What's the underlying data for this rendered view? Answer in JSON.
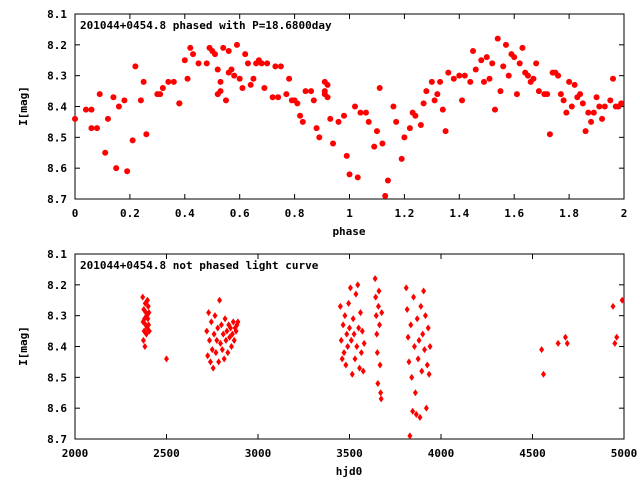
{
  "chart_data": [
    {
      "type": "scatter",
      "title": "201044+0454.8 phased with P=18.6800day",
      "xlabel": "phase",
      "ylabel": "I[mag]",
      "xlim": [
        0,
        2
      ],
      "ylim": [
        8.7,
        8.1
      ],
      "y_inverted": true,
      "grid": false,
      "marker": "filled-circle",
      "color": "#ff0000",
      "xticks": [
        "0",
        "0.2",
        "0.4",
        "0.6",
        "0.8",
        "1",
        "1.2",
        "1.4",
        "1.6",
        "1.8",
        "2"
      ],
      "yticks": [
        "8.1",
        "8.2",
        "8.3",
        "8.4",
        "8.5",
        "8.6",
        "8.7"
      ],
      "points": [
        [
          0.0,
          8.44
        ],
        [
          0.04,
          8.41
        ],
        [
          0.06,
          8.41
        ],
        [
          0.06,
          8.47
        ],
        [
          0.08,
          8.47
        ],
        [
          0.09,
          8.36
        ],
        [
          0.11,
          8.55
        ],
        [
          0.12,
          8.44
        ],
        [
          0.14,
          8.37
        ],
        [
          0.15,
          8.6
        ],
        [
          0.16,
          8.4
        ],
        [
          0.18,
          8.38
        ],
        [
          0.19,
          8.61
        ],
        [
          0.21,
          8.51
        ],
        [
          0.22,
          8.27
        ],
        [
          0.24,
          8.38
        ],
        [
          0.25,
          8.32
        ],
        [
          0.26,
          8.49
        ],
        [
          0.3,
          8.36
        ],
        [
          0.31,
          8.36
        ],
        [
          0.32,
          8.34
        ],
        [
          0.34,
          8.32
        ],
        [
          0.36,
          8.32
        ],
        [
          0.38,
          8.39
        ],
        [
          0.38,
          8.39
        ],
        [
          0.4,
          8.25
        ],
        [
          0.41,
          8.31
        ],
        [
          0.42,
          8.21
        ],
        [
          0.43,
          8.23
        ],
        [
          0.45,
          8.26
        ],
        [
          0.48,
          8.26
        ],
        [
          0.49,
          8.21
        ],
        [
          0.5,
          8.22
        ],
        [
          0.51,
          8.23
        ],
        [
          0.52,
          8.28
        ],
        [
          0.52,
          8.36
        ],
        [
          0.53,
          8.32
        ],
        [
          0.53,
          8.35
        ],
        [
          0.54,
          8.21
        ],
        [
          0.55,
          8.38
        ],
        [
          0.56,
          8.22
        ],
        [
          0.56,
          8.29
        ],
        [
          0.57,
          8.28
        ],
        [
          0.58,
          8.3
        ],
        [
          0.59,
          8.2
        ],
        [
          0.6,
          8.31
        ],
        [
          0.61,
          8.34
        ],
        [
          0.62,
          8.23
        ],
        [
          0.63,
          8.26
        ],
        [
          0.64,
          8.33
        ],
        [
          0.65,
          8.31
        ],
        [
          0.66,
          8.26
        ],
        [
          0.67,
          8.25
        ],
        [
          0.68,
          8.26
        ],
        [
          0.69,
          8.34
        ],
        [
          0.7,
          8.26
        ],
        [
          0.72,
          8.37
        ],
        [
          0.73,
          8.27
        ],
        [
          0.74,
          8.37
        ],
        [
          0.75,
          8.27
        ],
        [
          0.77,
          8.36
        ],
        [
          0.78,
          8.31
        ],
        [
          0.79,
          8.38
        ],
        [
          0.8,
          8.38
        ],
        [
          0.81,
          8.39
        ],
        [
          0.82,
          8.43
        ],
        [
          0.83,
          8.45
        ],
        [
          0.84,
          8.35
        ],
        [
          0.86,
          8.35
        ],
        [
          0.87,
          8.38
        ],
        [
          0.88,
          8.47
        ],
        [
          0.89,
          8.5
        ],
        [
          0.91,
          8.32
        ],
        [
          0.91,
          8.35
        ],
        [
          0.91,
          8.36
        ],
        [
          0.92,
          8.33
        ],
        [
          0.92,
          8.37
        ],
        [
          0.93,
          8.44
        ],
        [
          0.94,
          8.52
        ],
        [
          0.96,
          8.45
        ],
        [
          0.98,
          8.43
        ],
        [
          0.99,
          8.56
        ],
        [
          1.0,
          8.62
        ],
        [
          1.02,
          8.4
        ],
        [
          1.03,
          8.63
        ],
        [
          1.04,
          8.42
        ],
        [
          1.06,
          8.42
        ],
        [
          1.07,
          8.45
        ],
        [
          1.09,
          8.53
        ],
        [
          1.1,
          8.48
        ],
        [
          1.11,
          8.34
        ],
        [
          1.12,
          8.52
        ],
        [
          1.13,
          8.69
        ],
        [
          1.14,
          8.64
        ],
        [
          1.16,
          8.4
        ],
        [
          1.17,
          8.45
        ],
        [
          1.19,
          8.57
        ],
        [
          1.2,
          8.5
        ],
        [
          1.22,
          8.47
        ],
        [
          1.23,
          8.42
        ],
        [
          1.24,
          8.43
        ],
        [
          1.26,
          8.46
        ],
        [
          1.27,
          8.39
        ],
        [
          1.28,
          8.35
        ],
        [
          1.3,
          8.32
        ],
        [
          1.31,
          8.38
        ],
        [
          1.32,
          8.36
        ],
        [
          1.33,
          8.32
        ],
        [
          1.34,
          8.41
        ],
        [
          1.35,
          8.48
        ],
        [
          1.36,
          8.29
        ],
        [
          1.38,
          8.31
        ],
        [
          1.4,
          8.3
        ],
        [
          1.41,
          8.38
        ],
        [
          1.42,
          8.3
        ],
        [
          1.44,
          8.32
        ],
        [
          1.45,
          8.22
        ],
        [
          1.46,
          8.28
        ],
        [
          1.48,
          8.25
        ],
        [
          1.49,
          8.32
        ],
        [
          1.5,
          8.24
        ],
        [
          1.51,
          8.31
        ],
        [
          1.52,
          8.26
        ],
        [
          1.53,
          8.41
        ],
        [
          1.54,
          8.18
        ],
        [
          1.55,
          8.35
        ],
        [
          1.56,
          8.27
        ],
        [
          1.57,
          8.2
        ],
        [
          1.58,
          8.3
        ],
        [
          1.59,
          8.23
        ],
        [
          1.6,
          8.24
        ],
        [
          1.61,
          8.36
        ],
        [
          1.62,
          8.26
        ],
        [
          1.63,
          8.21
        ],
        [
          1.64,
          8.29
        ],
        [
          1.65,
          8.3
        ],
        [
          1.66,
          8.32
        ],
        [
          1.67,
          8.31
        ],
        [
          1.68,
          8.26
        ],
        [
          1.69,
          8.35
        ],
        [
          1.71,
          8.36
        ],
        [
          1.72,
          8.36
        ],
        [
          1.73,
          8.49
        ],
        [
          1.74,
          8.29
        ],
        [
          1.75,
          8.29
        ],
        [
          1.76,
          8.3
        ],
        [
          1.77,
          8.36
        ],
        [
          1.78,
          8.38
        ],
        [
          1.79,
          8.42
        ],
        [
          1.8,
          8.32
        ],
        [
          1.81,
          8.4
        ],
        [
          1.82,
          8.33
        ],
        [
          1.83,
          8.37
        ],
        [
          1.84,
          8.36
        ],
        [
          1.85,
          8.39
        ],
        [
          1.86,
          8.48
        ],
        [
          1.87,
          8.42
        ],
        [
          1.88,
          8.45
        ],
        [
          1.89,
          8.42
        ],
        [
          1.9,
          8.37
        ],
        [
          1.91,
          8.4
        ],
        [
          1.92,
          8.44
        ],
        [
          1.93,
          8.4
        ],
        [
          1.95,
          8.38
        ],
        [
          1.96,
          8.31
        ],
        [
          1.97,
          8.4
        ],
        [
          1.98,
          8.4
        ],
        [
          1.99,
          8.39
        ]
      ]
    },
    {
      "type": "scatter",
      "title": "201044+0454.8 not phased light curve",
      "xlabel": "hjd0",
      "ylabel": "I[mag]",
      "xlim": [
        2000,
        5000
      ],
      "ylim": [
        8.7,
        8.1
      ],
      "y_inverted": true,
      "grid": false,
      "marker": "filled-diamond",
      "color": "#ff0000",
      "xticks": [
        "2000",
        "2500",
        "3000",
        "3500",
        "4000",
        "4500",
        "5000"
      ],
      "yticks": [
        "8.1",
        "8.2",
        "8.3",
        "8.4",
        "8.5",
        "8.6",
        "8.7"
      ],
      "points": [
        [
          2370,
          8.24
        ],
        [
          2372,
          8.32
        ],
        [
          2374,
          8.38
        ],
        [
          2376,
          8.28
        ],
        [
          2378,
          8.35
        ],
        [
          2380,
          8.31
        ],
        [
          2382,
          8.4
        ],
        [
          2384,
          8.26
        ],
        [
          2386,
          8.33
        ],
        [
          2388,
          8.29
        ],
        [
          2390,
          8.36
        ],
        [
          2392,
          8.3
        ],
        [
          2394,
          8.34
        ],
        [
          2396,
          8.25
        ],
        [
          2398,
          8.31
        ],
        [
          2400,
          8.27
        ],
        [
          2402,
          8.33
        ],
        [
          2404,
          8.29
        ],
        [
          2406,
          8.35
        ],
        [
          2500,
          8.44
        ],
        [
          2720,
          8.35
        ],
        [
          2725,
          8.43
        ],
        [
          2730,
          8.29
        ],
        [
          2735,
          8.38
        ],
        [
          2740,
          8.45
        ],
        [
          2745,
          8.32
        ],
        [
          2750,
          8.41
        ],
        [
          2755,
          8.47
        ],
        [
          2760,
          8.36
        ],
        [
          2765,
          8.3
        ],
        [
          2770,
          8.42
        ],
        [
          2775,
          8.38
        ],
        [
          2780,
          8.34
        ],
        [
          2785,
          8.45
        ],
        [
          2790,
          8.25
        ],
        [
          2795,
          8.39
        ],
        [
          2800,
          8.33
        ],
        [
          2805,
          8.41
        ],
        [
          2810,
          8.36
        ],
        [
          2815,
          8.44
        ],
        [
          2820,
          8.31
        ],
        [
          2825,
          8.38
        ],
        [
          2830,
          8.35
        ],
        [
          2835,
          8.42
        ],
        [
          2840,
          8.33
        ],
        [
          2845,
          8.37
        ],
        [
          2850,
          8.34
        ],
        [
          2855,
          8.4
        ],
        [
          2860,
          8.36
        ],
        [
          2865,
          8.32
        ],
        [
          2870,
          8.38
        ],
        [
          2875,
          8.34
        ],
        [
          2880,
          8.35
        ],
        [
          2885,
          8.33
        ],
        [
          2890,
          8.32
        ],
        [
          3450,
          8.27
        ],
        [
          3455,
          8.38
        ],
        [
          3460,
          8.44
        ],
        [
          3465,
          8.33
        ],
        [
          3470,
          8.42
        ],
        [
          3475,
          8.3
        ],
        [
          3480,
          8.46
        ],
        [
          3485,
          8.36
        ],
        [
          3490,
          8.4
        ],
        [
          3495,
          8.26
        ],
        [
          3500,
          8.34
        ],
        [
          3505,
          8.21
        ],
        [
          3510,
          8.38
        ],
        [
          3515,
          8.49
        ],
        [
          3520,
          8.31
        ],
        [
          3525,
          8.36
        ],
        [
          3530,
          8.44
        ],
        [
          3535,
          8.23
        ],
        [
          3540,
          8.4
        ],
        [
          3545,
          8.2
        ],
        [
          3550,
          8.34
        ],
        [
          3555,
          8.47
        ],
        [
          3560,
          8.29
        ],
        [
          3565,
          8.42
        ],
        [
          3570,
          8.35
        ],
        [
          3575,
          8.48
        ],
        [
          3580,
          8.39
        ],
        [
          3640,
          8.18
        ],
        [
          3643,
          8.24
        ],
        [
          3646,
          8.3
        ],
        [
          3649,
          8.36
        ],
        [
          3652,
          8.42
        ],
        [
          3655,
          8.52
        ],
        [
          3658,
          8.27
        ],
        [
          3661,
          8.22
        ],
        [
          3664,
          8.33
        ],
        [
          3667,
          8.46
        ],
        [
          3670,
          8.55
        ],
        [
          3673,
          8.57
        ],
        [
          3676,
          8.29
        ],
        [
          3810,
          8.21
        ],
        [
          3815,
          8.28
        ],
        [
          3820,
          8.37
        ],
        [
          3825,
          8.45
        ],
        [
          3830,
          8.69
        ],
        [
          3835,
          8.33
        ],
        [
          3840,
          8.5
        ],
        [
          3845,
          8.61
        ],
        [
          3850,
          8.24
        ],
        [
          3855,
          8.4
        ],
        [
          3860,
          8.55
        ],
        [
          3865,
          8.62
        ],
        [
          3870,
          8.31
        ],
        [
          3875,
          8.44
        ],
        [
          3880,
          8.38
        ],
        [
          3885,
          8.63
        ],
        [
          3890,
          8.27
        ],
        [
          3895,
          8.48
        ],
        [
          3900,
          8.36
        ],
        [
          3905,
          8.22
        ],
        [
          3910,
          8.41
        ],
        [
          3915,
          8.3
        ],
        [
          3920,
          8.6
        ],
        [
          3925,
          8.46
        ],
        [
          3930,
          8.34
        ],
        [
          3935,
          8.49
        ],
        [
          3940,
          8.4
        ],
        [
          4550,
          8.41
        ],
        [
          4560,
          8.49
        ],
        [
          4640,
          8.39
        ],
        [
          4680,
          8.37
        ],
        [
          4690,
          8.39
        ],
        [
          4940,
          8.27
        ],
        [
          4950,
          8.39
        ],
        [
          4960,
          8.37
        ],
        [
          4990,
          8.25
        ]
      ]
    }
  ]
}
